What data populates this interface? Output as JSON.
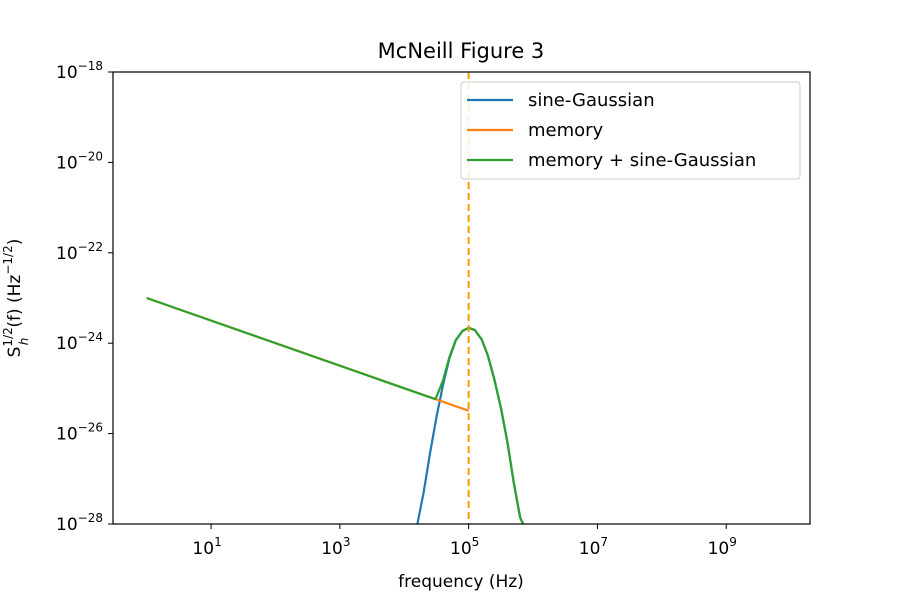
{
  "chart_data": {
    "type": "line",
    "title": "McNeill Figure 3",
    "xlabel": "frequency (Hz)",
    "ylabel": "S_h^{1/2}(f) (Hz^{-1/2})",
    "x_scale": "log",
    "y_scale": "log",
    "xlim": [
      0.3,
      20000000000.0
    ],
    "ylim": [
      1e-28,
      1e-18
    ],
    "grid": false,
    "legend_position": "top-right",
    "x_ticks": [
      {
        "value": 10,
        "base": "10",
        "exp": "1"
      },
      {
        "value": 1000,
        "base": "10",
        "exp": "3"
      },
      {
        "value": 100000,
        "base": "10",
        "exp": "5"
      },
      {
        "value": 10000000,
        "base": "10",
        "exp": "7"
      },
      {
        "value": 1000000000,
        "base": "10",
        "exp": "9"
      }
    ],
    "y_ticks": [
      {
        "value": 1e-18,
        "base": "10",
        "exp": "−18"
      },
      {
        "value": 1e-20,
        "base": "10",
        "exp": "−20"
      },
      {
        "value": 1e-22,
        "base": "10",
        "exp": "−22"
      },
      {
        "value": 1e-24,
        "base": "10",
        "exp": "−24"
      },
      {
        "value": 1e-26,
        "base": "10",
        "exp": "−26"
      },
      {
        "value": 1e-28,
        "base": "10",
        "exp": "−28"
      }
    ],
    "series": [
      {
        "name": "sine-Gaussian",
        "color": "#1f77b4",
        "x": [
          16000,
          20000,
          25000,
          31600,
          40000,
          50000,
          63000,
          80000,
          100000,
          125000,
          160000,
          200000,
          250000,
          316000,
          400000,
          500000,
          630000,
          700000
        ],
        "y": [
          1e-28,
          5e-28,
          3.5e-27,
          2.3e-26,
          1.2e-25,
          4.5e-25,
          1.15e-24,
          1.85e-24,
          2.2e-24,
          1.95e-24,
          1.2e-24,
          5.2e-25,
          1.6e-25,
          3.8e-26,
          6.5e-27,
          8.5e-28,
          1.4e-28,
          1e-28
        ]
      },
      {
        "name": "memory",
        "color": "#ff7f0e",
        "x": [
          1,
          100000
        ],
        "y": [
          1e-23,
          3.2e-26
        ]
      },
      {
        "name": "memory + sine-Gaussian",
        "color": "#2ca02c",
        "x": [
          1,
          30000,
          31600,
          40000,
          50000,
          63000,
          80000,
          100000,
          125000,
          160000,
          200000,
          250000,
          316000,
          400000,
          500000,
          630000,
          700000
        ],
        "y": [
          1e-23,
          5.8e-26,
          6.5e-26,
          1.5e-25,
          4.8e-25,
          1.17e-24,
          1.86e-24,
          2.2e-24,
          1.95e-24,
          1.2e-24,
          5.2e-25,
          1.6e-25,
          3.8e-26,
          6.5e-27,
          8.5e-28,
          1.4e-28,
          1e-28
        ]
      }
    ],
    "vertical_lines": [
      {
        "x": 100000,
        "color": "#ff9900",
        "style": "dashed"
      }
    ]
  }
}
